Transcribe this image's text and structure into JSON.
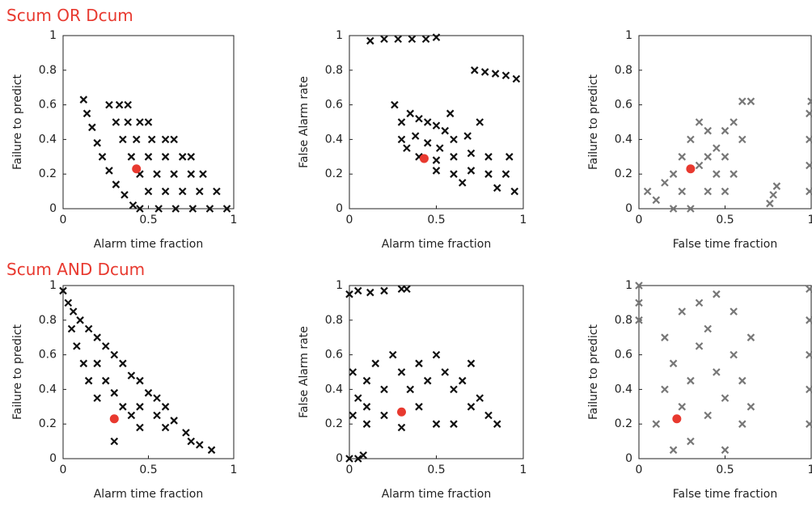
{
  "headings": [
    "Scum OR Dcum",
    "Scum AND Dcum"
  ],
  "chart_data": [
    {
      "type": "scatter",
      "xlabel": "Alarm time fraction",
      "ylabel": "Failure to predict",
      "color": "#111111",
      "xlim": [
        0,
        1
      ],
      "ylim": [
        0,
        1
      ],
      "xticks": [
        0,
        0.5,
        1
      ],
      "yticks": [
        0,
        0.2,
        0.4,
        0.6,
        0.8,
        1
      ],
      "x": [
        0.12,
        0.14,
        0.17,
        0.2,
        0.23,
        0.27,
        0.31,
        0.36,
        0.41,
        0.45,
        0.27,
        0.33,
        0.38,
        0.31,
        0.38,
        0.45,
        0.5,
        0.35,
        0.43,
        0.52,
        0.6,
        0.65,
        0.4,
        0.5,
        0.6,
        0.7,
        0.75,
        0.45,
        0.55,
        0.65,
        0.75,
        0.82,
        0.5,
        0.6,
        0.7,
        0.8,
        0.9,
        0.56,
        0.66,
        0.76,
        0.86,
        0.96
      ],
      "y": [
        0.63,
        0.55,
        0.47,
        0.38,
        0.3,
        0.22,
        0.14,
        0.08,
        0.02,
        0,
        0.6,
        0.6,
        0.6,
        0.5,
        0.5,
        0.5,
        0.5,
        0.4,
        0.4,
        0.4,
        0.4,
        0.4,
        0.3,
        0.3,
        0.3,
        0.3,
        0.3,
        0.2,
        0.2,
        0.2,
        0.2,
        0.2,
        0.1,
        0.1,
        0.1,
        0.1,
        0.1,
        0,
        0,
        0,
        0,
        0
      ],
      "highlight": {
        "x": 0.43,
        "y": 0.23,
        "color": "#e8392f"
      }
    },
    {
      "type": "scatter",
      "xlabel": "Alarm time fraction",
      "ylabel": "False Alarm rate",
      "color": "#111111",
      "xlim": [
        0,
        1
      ],
      "ylim": [
        0,
        1
      ],
      "xticks": [
        0,
        0.5,
        1
      ],
      "yticks": [
        0,
        0.2,
        0.4,
        0.6,
        0.8,
        1
      ],
      "x": [
        0.12,
        0.2,
        0.28,
        0.36,
        0.44,
        0.5,
        0.72,
        0.78,
        0.84,
        0.9,
        0.96,
        0.26,
        0.3,
        0.35,
        0.4,
        0.45,
        0.5,
        0.55,
        0.3,
        0.38,
        0.45,
        0.52,
        0.6,
        0.68,
        0.75,
        0.4,
        0.5,
        0.6,
        0.7,
        0.8,
        0.5,
        0.6,
        0.7,
        0.8,
        0.9,
        0.85,
        0.95,
        0.92,
        0.65,
        0.33,
        0.58
      ],
      "y": [
        0.97,
        0.98,
        0.98,
        0.98,
        0.98,
        0.99,
        0.8,
        0.79,
        0.78,
        0.77,
        0.75,
        0.6,
        0.5,
        0.55,
        0.52,
        0.5,
        0.48,
        0.45,
        0.4,
        0.42,
        0.38,
        0.35,
        0.4,
        0.42,
        0.5,
        0.3,
        0.28,
        0.3,
        0.32,
        0.3,
        0.22,
        0.2,
        0.22,
        0.2,
        0.2,
        0.12,
        0.1,
        0.3,
        0.15,
        0.35,
        0.55
      ],
      "highlight": {
        "x": 0.43,
        "y": 0.29,
        "color": "#e8392f"
      }
    },
    {
      "type": "scatter",
      "xlabel": "False time fraction",
      "ylabel": "Failure to predict",
      "color": "#777777",
      "xlim": [
        0,
        1
      ],
      "ylim": [
        0,
        1
      ],
      "xticks": [
        0,
        0.5,
        1
      ],
      "yticks": [
        0,
        0.2,
        0.4,
        0.6,
        0.8,
        1
      ],
      "x": [
        0.05,
        0.1,
        0.15,
        0.2,
        0.25,
        0.3,
        0.35,
        0.4,
        0.45,
        0.5,
        0.55,
        0.6,
        0.65,
        0.2,
        0.3,
        0.4,
        0.5,
        0.55,
        0.35,
        0.45,
        0.25,
        0.4,
        0.5,
        0.6,
        0.76,
        0.78,
        0.8,
        0.99,
        0.99,
        0.99,
        0.99,
        1
      ],
      "y": [
        0.1,
        0.05,
        0.15,
        0.2,
        0.3,
        0.4,
        0.5,
        0.45,
        0.35,
        0.3,
        0.5,
        0.62,
        0.62,
        0,
        0,
        0.1,
        0.1,
        0.2,
        0.25,
        0.2,
        0.1,
        0.3,
        0.45,
        0.4,
        0.03,
        0.08,
        0.13,
        0.1,
        0.25,
        0.4,
        0.55,
        0.62
      ],
      "highlight": {
        "x": 0.3,
        "y": 0.23,
        "color": "#e8392f"
      }
    },
    {
      "type": "scatter",
      "xlabel": "Alarm time fraction",
      "ylabel": "Failure to predict",
      "color": "#111111",
      "xlim": [
        0,
        1
      ],
      "ylim": [
        0,
        1
      ],
      "xticks": [
        0,
        0.5,
        1
      ],
      "yticks": [
        0,
        0.2,
        0.4,
        0.6,
        0.8,
        1
      ],
      "x": [
        0,
        0.03,
        0.06,
        0.1,
        0.05,
        0.15,
        0.2,
        0.08,
        0.25,
        0.3,
        0.12,
        0.2,
        0.35,
        0.15,
        0.25,
        0.4,
        0.45,
        0.2,
        0.3,
        0.5,
        0.55,
        0.35,
        0.45,
        0.6,
        0.4,
        0.55,
        0.65,
        0.45,
        0.6,
        0.72,
        0.3,
        0.75,
        0.8,
        0.87
      ],
      "y": [
        0.97,
        0.9,
        0.85,
        0.8,
        0.75,
        0.75,
        0.7,
        0.65,
        0.65,
        0.6,
        0.55,
        0.55,
        0.55,
        0.45,
        0.45,
        0.48,
        0.45,
        0.35,
        0.38,
        0.38,
        0.35,
        0.3,
        0.3,
        0.3,
        0.25,
        0.25,
        0.22,
        0.18,
        0.18,
        0.15,
        0.1,
        0.1,
        0.08,
        0.05
      ],
      "highlight": {
        "x": 0.3,
        "y": 0.23,
        "color": "#e8392f"
      }
    },
    {
      "type": "scatter",
      "xlabel": "Alarm time fraction",
      "ylabel": "False Alarm rate",
      "color": "#111111",
      "xlim": [
        0,
        1
      ],
      "ylim": [
        0,
        1
      ],
      "xticks": [
        0,
        0.5,
        1
      ],
      "yticks": [
        0,
        0.2,
        0.4,
        0.6,
        0.8,
        1
      ],
      "x": [
        0,
        0.05,
        0.12,
        0.2,
        0.3,
        0.33,
        0.02,
        0.05,
        0.02,
        0.1,
        0.1,
        0.15,
        0.2,
        0.25,
        0.3,
        0.35,
        0.4,
        0.45,
        0.5,
        0.55,
        0.6,
        0.65,
        0.7,
        0.75,
        0.8,
        0.85,
        0.1,
        0.2,
        0.4,
        0.5,
        0.6,
        0.3,
        0,
        0.05,
        0.08,
        0.7
      ],
      "y": [
        0.95,
        0.97,
        0.96,
        0.97,
        0.98,
        0.98,
        0.5,
        0.35,
        0.25,
        0.45,
        0.3,
        0.55,
        0.4,
        0.6,
        0.5,
        0.4,
        0.55,
        0.45,
        0.6,
        0.5,
        0.4,
        0.45,
        0.3,
        0.35,
        0.25,
        0.2,
        0.2,
        0.25,
        0.3,
        0.2,
        0.2,
        0.18,
        0,
        0,
        0.02,
        0.55
      ],
      "highlight": {
        "x": 0.3,
        "y": 0.27,
        "color": "#e8392f"
      }
    },
    {
      "type": "scatter",
      "xlabel": "False time fraction",
      "ylabel": "Failure to predict",
      "color": "#777777",
      "xlim": [
        0,
        1
      ],
      "ylim": [
        0,
        1
      ],
      "xticks": [
        0,
        0.5,
        1
      ],
      "yticks": [
        0,
        0.2,
        0.4,
        0.6,
        0.8,
        1
      ],
      "x": [
        0,
        0,
        0,
        0.1,
        0.15,
        0.15,
        0.2,
        0.25,
        0.25,
        0.3,
        0.3,
        0.35,
        0.35,
        0.4,
        0.4,
        0.45,
        0.45,
        0.5,
        0.5,
        0.55,
        0.55,
        0.6,
        0.6,
        0.65,
        0.65,
        0.2,
        0.99,
        0.99,
        0.99,
        0.99,
        0.99
      ],
      "y": [
        0.8,
        0.9,
        1,
        0.2,
        0.4,
        0.7,
        0.55,
        0.85,
        0.3,
        0.45,
        0.1,
        0.65,
        0.9,
        0.25,
        0.75,
        0.5,
        0.95,
        0.35,
        0.05,
        0.6,
        0.85,
        0.2,
        0.45,
        0.3,
        0.7,
        0.05,
        0.2,
        0.4,
        0.6,
        0.8,
        0.98
      ],
      "highlight": {
        "x": 0.22,
        "y": 0.23,
        "color": "#e8392f"
      }
    }
  ]
}
